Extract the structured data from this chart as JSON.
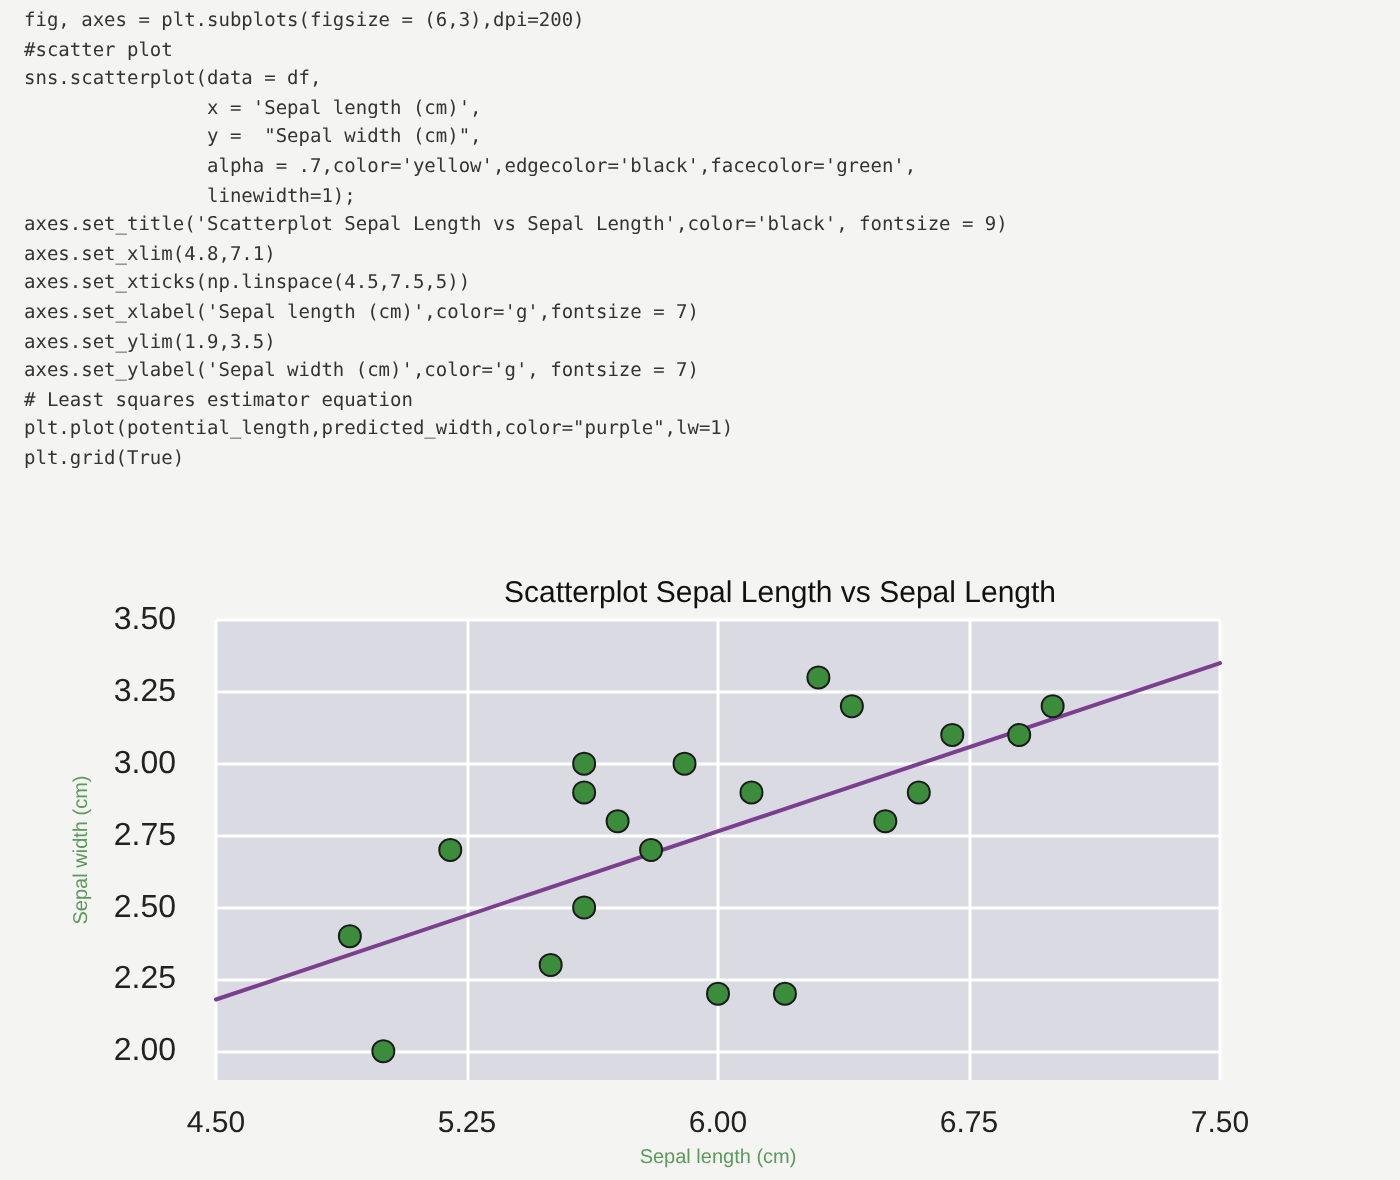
{
  "chart_data": {
    "type": "scatter",
    "title": "Scatterplot Sepal Length vs Sepal Length",
    "xlabel": "Sepal length (cm)",
    "ylabel": "Sepal width (cm)",
    "annotations": [
      "fig, axes = plt.subplots(figsize = (6,3),dpi=200)",
      "#scatter plot",
      "sns.scatterplot(data = df,",
      "                x = 'Sepal length (cm)',",
      "                y =  \"Sepal width (cm)\",",
      "                alpha = .7,color='yellow',edgecolor='black',facecolor='green',",
      "                linewidth=1);",
      "axes.set_title('Scatterplot Sepal Length vs Sepal Length',color='black', fontsize = 9)",
      "axes.set_xlim(4.8,7.1)",
      "axes.set_xticks(np.linspace(4.5,7.5,5))",
      "axes.set_xlabel('Sepal length (cm)',color='g',fontsize = 7)",
      "axes.set_ylim(1.9,3.5)",
      "axes.set_ylabel('Sepal width (cm)',color='g', fontsize = 7)",
      "# Least squares estimator equation",
      "plt.plot(potential_length,predicted_width,color=\"purple\",lw=1)",
      "plt.grid(True)"
    ],
    "series": [
      {
        "color": "#3b8c3b",
        "marker": "circle",
        "x": [
          4.9,
          5.0,
          5.2,
          5.6,
          5.6,
          5.6,
          5.5,
          5.7,
          5.8,
          5.9,
          6.0,
          6.1,
          6.2,
          6.3,
          6.4,
          6.5,
          6.6,
          6.7,
          6.9,
          7.0
        ],
        "values": [
          2.4,
          2.0,
          2.7,
          3.0,
          2.9,
          2.5,
          2.3,
          2.8,
          2.7,
          3.0,
          2.2,
          2.9,
          2.2,
          3.3,
          3.2,
          2.8,
          2.9,
          3.1,
          3.1,
          3.2
        ]
      },
      {
        "type": "line",
        "color": "#7b3f8f",
        "marker": "none",
        "line_style": "solid",
        "x": [
          4.5,
          7.5
        ],
        "values": [
          2.18,
          3.35
        ]
      }
    ],
    "xlim": [
      4.5,
      7.5
    ],
    "xticks": [
      {
        "value": 4.5,
        "label": "4.50"
      },
      {
        "value": 5.25,
        "label": "5.25"
      },
      {
        "value": 6,
        "label": "6.00"
      },
      {
        "value": 6.75,
        "label": "6.75"
      },
      {
        "value": 7.5,
        "label": "7.50"
      }
    ],
    "ylim": [
      1.9,
      3.5
    ],
    "yticks": [
      {
        "value": 2,
        "label": "2.00"
      },
      {
        "value": 2.25,
        "label": "2.25"
      },
      {
        "value": 2.5,
        "label": "2.50"
      },
      {
        "value": 2.75,
        "label": "2.75"
      },
      {
        "value": 3,
        "label": "3.00"
      },
      {
        "value": 3.25,
        "label": "3.25"
      },
      {
        "value": 3.5,
        "label": "3.50"
      }
    ],
    "grid": true
  }
}
